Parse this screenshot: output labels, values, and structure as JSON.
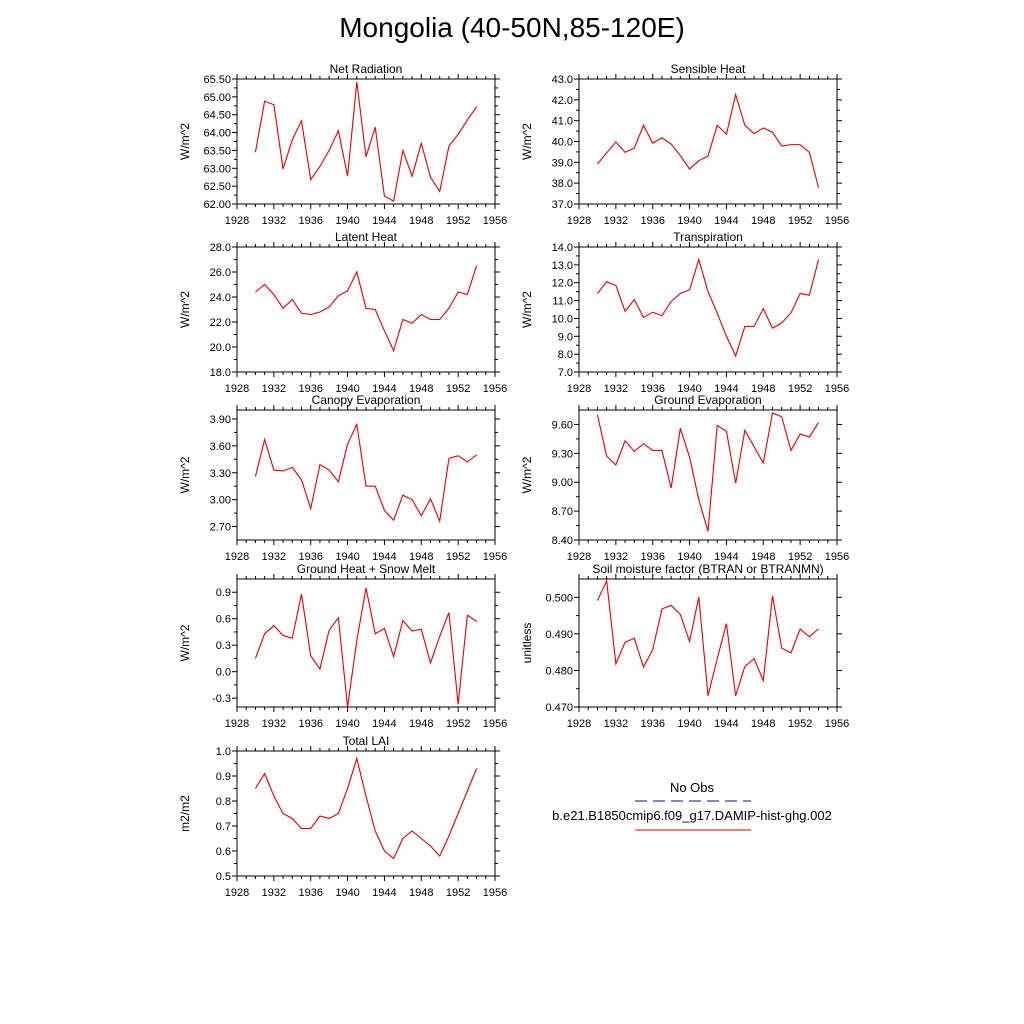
{
  "figure_title": "Mongolia (40-50N,85-120E)",
  "legend": {
    "entries": [
      {
        "label": "No Obs",
        "color": "#3a3aa8",
        "dash": "dashed"
      },
      {
        "label": "b.e21.B1850cmip6.f09_g17.DAMIP-hist-ghg.002",
        "color": "#e00000",
        "dash": "solid"
      }
    ]
  },
  "chart_data": [
    {
      "type": "line",
      "title": "Net Radiation",
      "ylabel": "W/m^2",
      "xlim": [
        1928,
        1956
      ],
      "xticks": [
        1928,
        1932,
        1936,
        1940,
        1944,
        1948,
        1952,
        1956
      ],
      "ylim": [
        62.0,
        65.5
      ],
      "yticks": [
        "62.00",
        "62.50",
        "63.00",
        "63.50",
        "64.00",
        "64.50",
        "65.00",
        "65.50"
      ],
      "color": "#e00000",
      "x": [
        1930,
        1931,
        1932,
        1933,
        1934,
        1935,
        1936,
        1937,
        1938,
        1939,
        1940,
        1941,
        1942,
        1943,
        1944,
        1945,
        1946,
        1947,
        1948,
        1949,
        1950,
        1951,
        1952,
        1953,
        1954
      ],
      "y": [
        63.45,
        64.88,
        64.78,
        62.98,
        63.8,
        64.33,
        62.68,
        63.05,
        63.5,
        64.05,
        62.78,
        65.42,
        63.32,
        64.15,
        62.22,
        62.08,
        63.5,
        62.78,
        63.7,
        62.75,
        62.35,
        63.62,
        63.95,
        64.35,
        64.72
      ]
    },
    {
      "type": "line",
      "title": "Sensible Heat",
      "ylabel": "W/m^2",
      "xlim": [
        1928,
        1956
      ],
      "xticks": [
        1928,
        1932,
        1936,
        1940,
        1944,
        1948,
        1952,
        1956
      ],
      "ylim": [
        37.0,
        43.0
      ],
      "yticks": [
        "37.0",
        "38.0",
        "39.0",
        "40.0",
        "41.0",
        "42.0",
        "43.0"
      ],
      "color": "#e00000",
      "x": [
        1930,
        1931,
        1932,
        1933,
        1934,
        1935,
        1936,
        1937,
        1938,
        1939,
        1940,
        1941,
        1942,
        1943,
        1944,
        1945,
        1946,
        1947,
        1948,
        1949,
        1950,
        1951,
        1952,
        1953,
        1954
      ],
      "y": [
        38.92,
        39.45,
        39.98,
        39.48,
        39.68,
        40.78,
        39.92,
        40.18,
        39.88,
        39.32,
        38.68,
        39.08,
        39.3,
        40.78,
        40.35,
        42.25,
        40.78,
        40.38,
        40.65,
        40.45,
        39.78,
        39.85,
        39.85,
        39.48,
        37.78
      ]
    },
    {
      "type": "line",
      "title": "Latent Heat",
      "ylabel": "W/m^2",
      "xlim": [
        1928,
        1956
      ],
      "xticks": [
        1928,
        1932,
        1936,
        1940,
        1944,
        1948,
        1952,
        1956
      ],
      "ylim": [
        18.0,
        28.0
      ],
      "yticks": [
        "18.0",
        "20.0",
        "22.0",
        "24.0",
        "26.0",
        "28.0"
      ],
      "color": "#e00000",
      "x": [
        1930,
        1931,
        1932,
        1933,
        1934,
        1935,
        1936,
        1937,
        1938,
        1939,
        1940,
        1941,
        1942,
        1943,
        1944,
        1945,
        1946,
        1947,
        1948,
        1949,
        1950,
        1951,
        1952,
        1953,
        1954
      ],
      "y": [
        24.4,
        25.0,
        24.2,
        23.1,
        23.8,
        22.7,
        22.6,
        22.8,
        23.2,
        24.1,
        24.5,
        26.0,
        23.1,
        23.0,
        21.3,
        19.7,
        22.2,
        21.9,
        22.6,
        22.2,
        22.2,
        23.1,
        24.4,
        24.2,
        26.5
      ]
    },
    {
      "type": "line",
      "title": "Transpiration",
      "ylabel": "W/m^2",
      "xlim": [
        1928,
        1956
      ],
      "xticks": [
        1928,
        1932,
        1936,
        1940,
        1944,
        1948,
        1952,
        1956
      ],
      "ylim": [
        7.0,
        14.0
      ],
      "yticks": [
        "7.0",
        "8.0",
        "9.0",
        "10.0",
        "11.0",
        "12.0",
        "13.0",
        "14.0"
      ],
      "color": "#e00000",
      "x": [
        1930,
        1931,
        1932,
        1933,
        1934,
        1935,
        1936,
        1937,
        1938,
        1939,
        1940,
        1941,
        1942,
        1943,
        1944,
        1945,
        1946,
        1947,
        1948,
        1949,
        1950,
        1951,
        1952,
        1953,
        1954
      ],
      "y": [
        11.4,
        12.05,
        11.85,
        10.4,
        11.05,
        10.05,
        10.35,
        10.15,
        10.95,
        11.4,
        11.6,
        13.3,
        11.5,
        10.3,
        9.0,
        7.9,
        9.55,
        9.55,
        10.55,
        9.45,
        9.75,
        10.3,
        11.4,
        11.3,
        13.3
      ]
    },
    {
      "type": "line",
      "title": "Canopy Evaporation",
      "ylabel": "W/m^2",
      "xlim": [
        1928,
        1956
      ],
      "xticks": [
        1928,
        1932,
        1936,
        1940,
        1944,
        1948,
        1952,
        1956
      ],
      "ylim": [
        2.55,
        4.0
      ],
      "yticks": [
        "2.70",
        "3.00",
        "3.30",
        "3.60",
        "3.90"
      ],
      "ytick_values": [
        2.7,
        3.0,
        3.3,
        3.6,
        3.9
      ],
      "color": "#e00000",
      "x": [
        1930,
        1931,
        1932,
        1933,
        1934,
        1935,
        1936,
        1937,
        1938,
        1939,
        1940,
        1941,
        1942,
        1943,
        1944,
        1945,
        1946,
        1947,
        1948,
        1949,
        1950,
        1951,
        1952,
        1953,
        1954
      ],
      "y": [
        3.26,
        3.67,
        3.33,
        3.32,
        3.36,
        3.22,
        2.9,
        3.39,
        3.33,
        3.2,
        3.62,
        3.84,
        3.15,
        3.15,
        2.88,
        2.77,
        3.05,
        3.0,
        2.82,
        3.01,
        2.76,
        3.46,
        3.49,
        3.42,
        3.5
      ]
    },
    {
      "type": "line",
      "title": "Ground Evaporation",
      "ylabel": "W/m^2",
      "xlim": [
        1928,
        1956
      ],
      "xticks": [
        1928,
        1932,
        1936,
        1940,
        1944,
        1948,
        1952,
        1956
      ],
      "ylim": [
        8.4,
        9.75
      ],
      "yticks": [
        "8.40",
        "8.70",
        "9.00",
        "9.30",
        "9.60"
      ],
      "ytick_values": [
        8.4,
        8.7,
        9.0,
        9.3,
        9.6
      ],
      "color": "#e00000",
      "x": [
        1930,
        1931,
        1932,
        1933,
        1934,
        1935,
        1936,
        1937,
        1938,
        1939,
        1940,
        1941,
        1942,
        1943,
        1944,
        1945,
        1946,
        1947,
        1948,
        1949,
        1950,
        1951,
        1952,
        1953,
        1954
      ],
      "y": [
        9.7,
        9.27,
        9.18,
        9.43,
        9.32,
        9.4,
        9.33,
        9.33,
        8.94,
        9.56,
        9.26,
        8.82,
        8.49,
        9.59,
        9.53,
        8.99,
        9.54,
        9.37,
        9.2,
        9.72,
        9.68,
        9.33,
        9.5,
        9.47,
        9.62
      ]
    },
    {
      "type": "line",
      "title": "Ground Heat + Snow Melt",
      "ylabel": "W/m^2",
      "xlim": [
        1928,
        1956
      ],
      "xticks": [
        1928,
        1932,
        1936,
        1940,
        1944,
        1948,
        1952,
        1956
      ],
      "ylim": [
        -0.4,
        1.05
      ],
      "yticks": [
        "-0.3",
        "0.0",
        "0.3",
        "0.6",
        "0.9"
      ],
      "ytick_values": [
        -0.3,
        0.0,
        0.3,
        0.6,
        0.9
      ],
      "color": "#e00000",
      "x": [
        1930,
        1931,
        1932,
        1933,
        1934,
        1935,
        1936,
        1937,
        1938,
        1939,
        1940,
        1941,
        1942,
        1943,
        1944,
        1945,
        1946,
        1947,
        1948,
        1949,
        1950,
        1951,
        1952,
        1953,
        1954
      ],
      "y": [
        0.15,
        0.43,
        0.52,
        0.41,
        0.38,
        0.88,
        0.18,
        0.03,
        0.47,
        0.61,
        -0.4,
        0.35,
        0.95,
        0.43,
        0.49,
        0.17,
        0.58,
        0.46,
        0.48,
        0.1,
        0.4,
        0.67,
        -0.37,
        0.64,
        0.57
      ]
    },
    {
      "type": "line",
      "title": "Soil moisture factor (BTRAN or BTRANMN)",
      "ylabel": "unitless",
      "xlim": [
        1928,
        1956
      ],
      "xticks": [
        1928,
        1932,
        1936,
        1940,
        1944,
        1948,
        1952,
        1956
      ],
      "ylim": [
        0.47,
        0.505
      ],
      "yticks": [
        "0.470",
        "0.480",
        "0.490",
        "0.500"
      ],
      "ytick_values": [
        0.47,
        0.48,
        0.49,
        0.5
      ],
      "color": "#e00000",
      "x": [
        1930,
        1931,
        1932,
        1933,
        1934,
        1935,
        1936,
        1937,
        1938,
        1939,
        1940,
        1941,
        1942,
        1943,
        1944,
        1945,
        1946,
        1947,
        1948,
        1949,
        1950,
        1951,
        1952,
        1953,
        1954
      ],
      "y": [
        0.4991,
        0.5045,
        0.4818,
        0.4877,
        0.4888,
        0.4809,
        0.4857,
        0.4968,
        0.4978,
        0.4953,
        0.4879,
        0.5001,
        0.4731,
        0.4832,
        0.4928,
        0.4731,
        0.4811,
        0.4832,
        0.4772,
        0.5004,
        0.4861,
        0.4848,
        0.4913,
        0.4892,
        0.4914
      ]
    },
    {
      "type": "line",
      "title": "Total LAI",
      "ylabel": "m2/m2",
      "xlim": [
        1928,
        1956
      ],
      "xticks": [
        1928,
        1932,
        1936,
        1940,
        1944,
        1948,
        1952,
        1956
      ],
      "ylim": [
        0.5,
        1.0
      ],
      "yticks": [
        "0.5",
        "0.6",
        "0.7",
        "0.8",
        "0.9",
        "1.0"
      ],
      "color": "#e00000",
      "x": [
        1930,
        1931,
        1932,
        1933,
        1934,
        1935,
        1936,
        1937,
        1938,
        1939,
        1940,
        1941,
        1942,
        1943,
        1944,
        1945,
        1946,
        1947,
        1948,
        1949,
        1950,
        1951,
        1952,
        1953,
        1954
      ],
      "y": [
        0.85,
        0.91,
        0.82,
        0.75,
        0.73,
        0.69,
        0.69,
        0.74,
        0.73,
        0.75,
        0.85,
        0.97,
        0.82,
        0.68,
        0.6,
        0.57,
        0.65,
        0.68,
        0.65,
        0.62,
        0.58,
        0.66,
        0.75,
        0.84,
        0.93
      ]
    }
  ]
}
